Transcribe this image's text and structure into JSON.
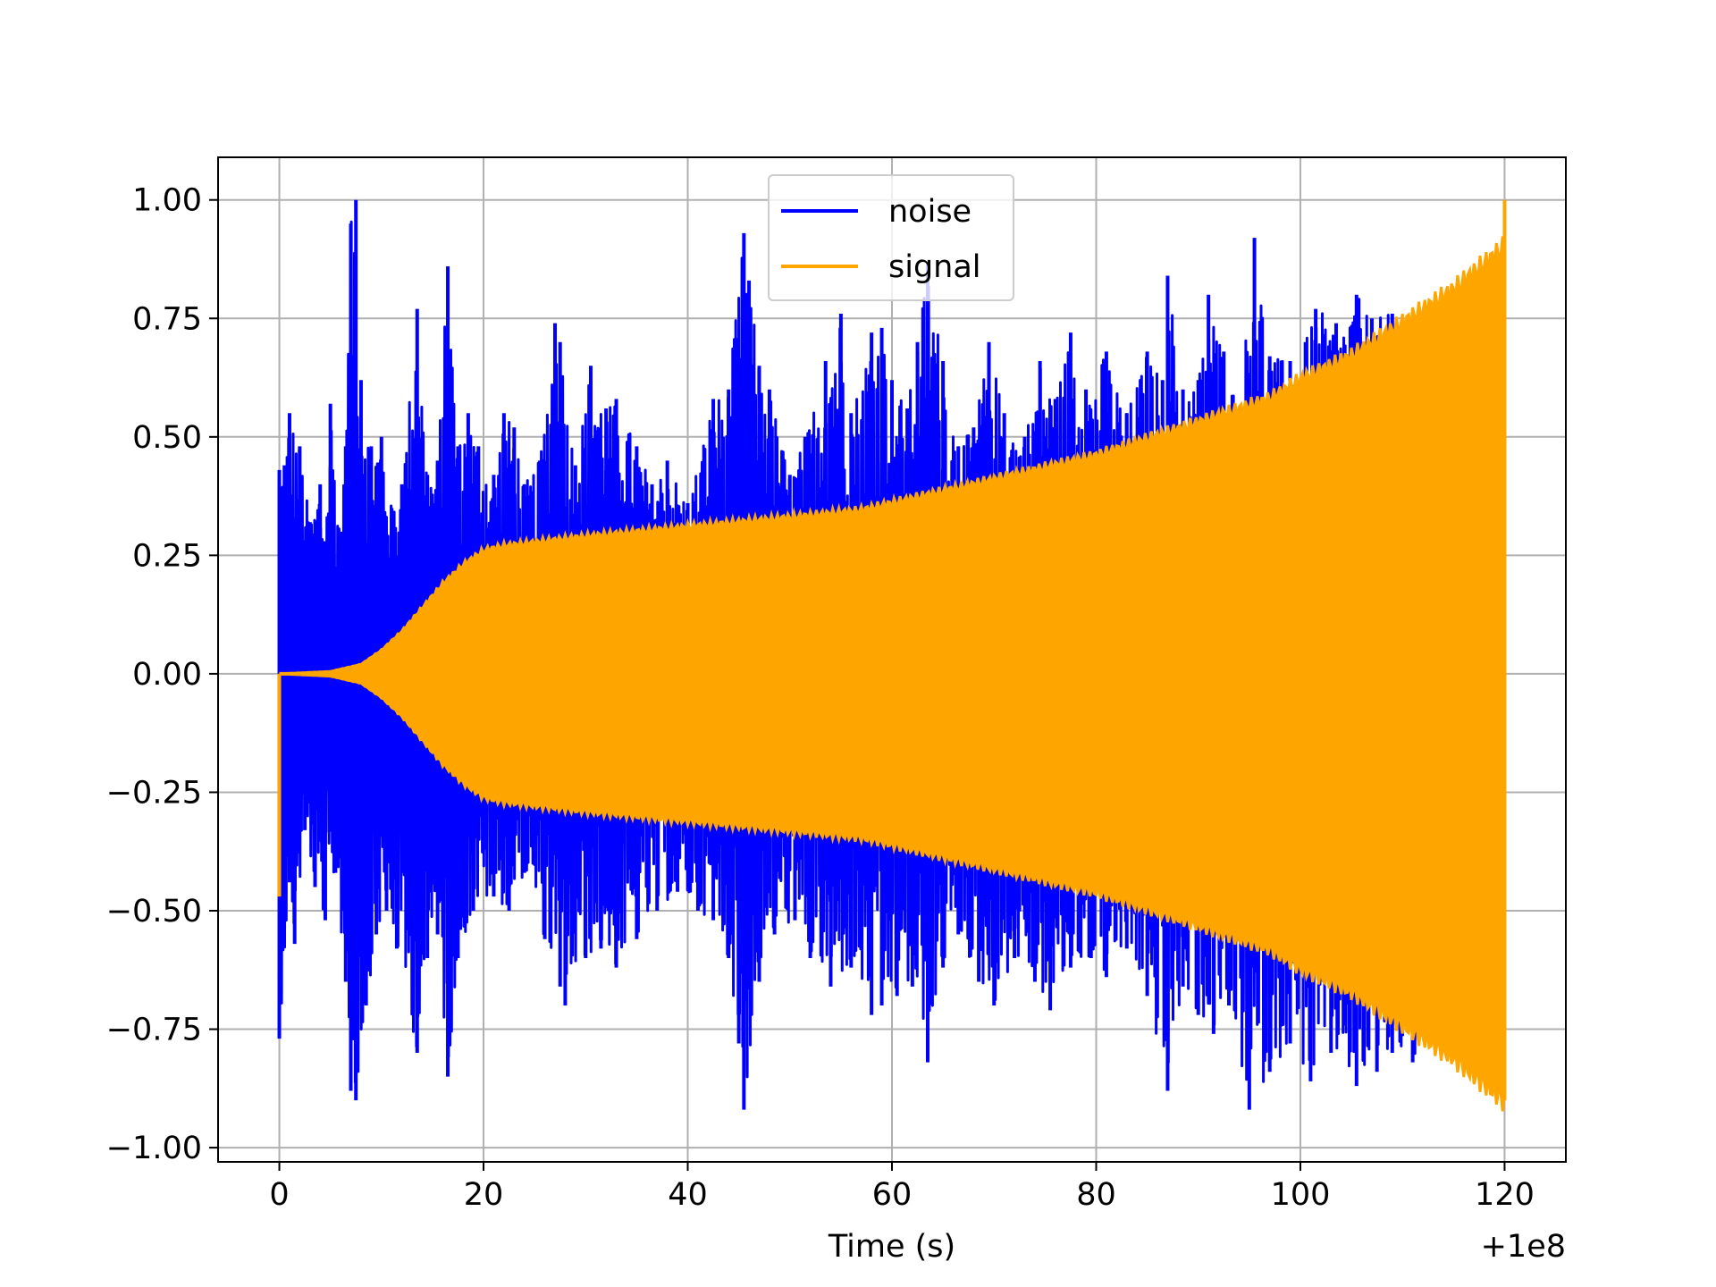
{
  "chart_data": {
    "type": "line",
    "xlabel": "Time (s)",
    "ylabel": "",
    "x_offset_label": "+1e8",
    "xlim": [
      -6,
      126
    ],
    "ylim": [
      -1.03,
      1.09
    ],
    "grid": true,
    "legend_position": "upper center",
    "x_ticks": [
      0,
      20,
      40,
      60,
      80,
      100,
      120
    ],
    "x_tick_labels": [
      "0",
      "20",
      "40",
      "60",
      "80",
      "100",
      "120"
    ],
    "y_ticks": [
      1.0,
      0.75,
      0.5,
      0.25,
      0.0,
      -0.25,
      -0.5,
      -0.75,
      -1.0
    ],
    "y_tick_labels": [
      "1.00",
      "0.75",
      "0.50",
      "0.25",
      "0.00",
      "−0.25",
      "−0.50",
      "−0.75",
      "−1.00"
    ],
    "x_range": [
      0,
      120
    ],
    "series": [
      {
        "name": "noise",
        "color": "#0000ff",
        "peaks": [
          {
            "x": 0.0,
            "v": 0.43
          },
          {
            "x": 0.5,
            "v": 0.44
          },
          {
            "x": 1.0,
            "v": 0.55
          },
          {
            "x": 2.0,
            "v": 0.48
          },
          {
            "x": 3.0,
            "v": 0.32
          },
          {
            "x": 4.0,
            "v": 0.4
          },
          {
            "x": 4.5,
            "v": 0.28
          },
          {
            "x": 5.0,
            "v": 0.57
          },
          {
            "x": 6.0,
            "v": 0.3
          },
          {
            "x": 6.5,
            "v": 0.48
          },
          {
            "x": 7.0,
            "v": 0.95
          },
          {
            "x": 7.5,
            "v": 1.0
          },
          {
            "x": 8.0,
            "v": 0.62
          },
          {
            "x": 9.0,
            "v": 0.48
          },
          {
            "x": 10.0,
            "v": 0.5
          },
          {
            "x": 11.0,
            "v": 0.35
          },
          {
            "x": 12.0,
            "v": 0.4
          },
          {
            "x": 13.5,
            "v": 0.77
          },
          {
            "x": 14.5,
            "v": 0.42
          },
          {
            "x": 15.5,
            "v": 0.45
          },
          {
            "x": 16.5,
            "v": 0.86
          },
          {
            "x": 17.5,
            "v": 0.48
          },
          {
            "x": 18.5,
            "v": 0.55
          },
          {
            "x": 19.5,
            "v": 0.48
          },
          {
            "x": 21.0,
            "v": 0.42
          },
          {
            "x": 22.0,
            "v": 0.55
          },
          {
            "x": 23.0,
            "v": 0.52
          },
          {
            "x": 24.0,
            "v": 0.4
          },
          {
            "x": 25.5,
            "v": 0.45
          },
          {
            "x": 27.0,
            "v": 0.74
          },
          {
            "x": 27.5,
            "v": 0.7
          },
          {
            "x": 29.0,
            "v": 0.44
          },
          {
            "x": 30.5,
            "v": 0.65
          },
          {
            "x": 32.0,
            "v": 0.56
          },
          {
            "x": 33.0,
            "v": 0.58
          },
          {
            "x": 35.0,
            "v": 0.48
          },
          {
            "x": 36.5,
            "v": 0.4
          },
          {
            "x": 38.0,
            "v": 0.45
          },
          {
            "x": 40.0,
            "v": 0.36
          },
          {
            "x": 42.5,
            "v": 0.58
          },
          {
            "x": 44.0,
            "v": 0.6
          },
          {
            "x": 45.5,
            "v": 0.93
          },
          {
            "x": 46.0,
            "v": 0.83
          },
          {
            "x": 47.0,
            "v": 0.65
          },
          {
            "x": 48.0,
            "v": 0.6
          },
          {
            "x": 50.0,
            "v": 0.42
          },
          {
            "x": 51.5,
            "v": 0.5
          },
          {
            "x": 53.5,
            "v": 0.66
          },
          {
            "x": 55.0,
            "v": 0.76
          },
          {
            "x": 56.0,
            "v": 0.55
          },
          {
            "x": 58.0,
            "v": 0.72
          },
          {
            "x": 59.0,
            "v": 0.73
          },
          {
            "x": 60.0,
            "v": 0.62
          },
          {
            "x": 61.5,
            "v": 0.56
          },
          {
            "x": 62.5,
            "v": 0.7
          },
          {
            "x": 63.5,
            "v": 0.87
          },
          {
            "x": 65.0,
            "v": 0.66
          },
          {
            "x": 66.5,
            "v": 0.48
          },
          {
            "x": 68.0,
            "v": 0.52
          },
          {
            "x": 69.5,
            "v": 0.7
          },
          {
            "x": 71.0,
            "v": 0.55
          },
          {
            "x": 73.0,
            "v": 0.5
          },
          {
            "x": 74.5,
            "v": 0.66
          },
          {
            "x": 76.0,
            "v": 0.58
          },
          {
            "x": 77.5,
            "v": 0.72
          },
          {
            "x": 79.0,
            "v": 0.6
          },
          {
            "x": 81.0,
            "v": 0.68
          },
          {
            "x": 83.0,
            "v": 0.55
          },
          {
            "x": 85.0,
            "v": 0.68
          },
          {
            "x": 86.5,
            "v": 0.62
          },
          {
            "x": 87.0,
            "v": 0.84
          },
          {
            "x": 88.5,
            "v": 0.6
          },
          {
            "x": 90.0,
            "v": 0.62
          },
          {
            "x": 91.0,
            "v": 0.8
          },
          {
            "x": 92.5,
            "v": 0.68
          },
          {
            "x": 94.0,
            "v": 0.56
          },
          {
            "x": 95.5,
            "v": 0.92
          },
          {
            "x": 97.0,
            "v": 0.67
          },
          {
            "x": 99.0,
            "v": 0.66
          },
          {
            "x": 100.5,
            "v": 0.7
          },
          {
            "x": 101.5,
            "v": 0.77
          },
          {
            "x": 103.5,
            "v": 0.74
          },
          {
            "x": 105.5,
            "v": 0.8
          },
          {
            "x": 107.0,
            "v": 0.75
          },
          {
            "x": 109.0,
            "v": 0.76
          },
          {
            "x": 110.5,
            "v": 0.75
          },
          {
            "x": 113.0,
            "v": 0.78
          }
        ],
        "troughs": [
          {
            "x": 0.0,
            "v": -0.77
          },
          {
            "x": 1.0,
            "v": -0.44
          },
          {
            "x": 1.5,
            "v": -0.57
          },
          {
            "x": 2.5,
            "v": -0.33
          },
          {
            "x": 3.5,
            "v": -0.45
          },
          {
            "x": 4.5,
            "v": -0.52
          },
          {
            "x": 5.5,
            "v": -0.42
          },
          {
            "x": 6.5,
            "v": -0.65
          },
          {
            "x": 7.0,
            "v": -0.88
          },
          {
            "x": 7.5,
            "v": -0.9
          },
          {
            "x": 8.5,
            "v": -0.7
          },
          {
            "x": 9.5,
            "v": -0.55
          },
          {
            "x": 10.5,
            "v": -0.5
          },
          {
            "x": 11.5,
            "v": -0.58
          },
          {
            "x": 13.5,
            "v": -0.8
          },
          {
            "x": 14.5,
            "v": -0.6
          },
          {
            "x": 15.5,
            "v": -0.55
          },
          {
            "x": 16.5,
            "v": -0.85
          },
          {
            "x": 17.5,
            "v": -0.6
          },
          {
            "x": 19.0,
            "v": -0.5
          },
          {
            "x": 21.0,
            "v": -0.47
          },
          {
            "x": 22.5,
            "v": -0.5
          },
          {
            "x": 24.0,
            "v": -0.42
          },
          {
            "x": 26.0,
            "v": -0.56
          },
          {
            "x": 27.5,
            "v": -0.66
          },
          {
            "x": 28.0,
            "v": -0.7
          },
          {
            "x": 30.0,
            "v": -0.6
          },
          {
            "x": 31.5,
            "v": -0.58
          },
          {
            "x": 33.0,
            "v": -0.62
          },
          {
            "x": 35.0,
            "v": -0.56
          },
          {
            "x": 37.0,
            "v": -0.5
          },
          {
            "x": 39.0,
            "v": -0.46
          },
          {
            "x": 41.0,
            "v": -0.5
          },
          {
            "x": 42.5,
            "v": -0.52
          },
          {
            "x": 44.0,
            "v": -0.6
          },
          {
            "x": 45.0,
            "v": -0.78
          },
          {
            "x": 45.5,
            "v": -0.92
          },
          {
            "x": 47.0,
            "v": -0.65
          },
          {
            "x": 48.5,
            "v": -0.55
          },
          {
            "x": 50.5,
            "v": -0.52
          },
          {
            "x": 52.0,
            "v": -0.6
          },
          {
            "x": 54.0,
            "v": -0.66
          },
          {
            "x": 56.0,
            "v": -0.62
          },
          {
            "x": 58.0,
            "v": -0.72
          },
          {
            "x": 59.0,
            "v": -0.7
          },
          {
            "x": 60.5,
            "v": -0.68
          },
          {
            "x": 62.0,
            "v": -0.66
          },
          {
            "x": 63.5,
            "v": -0.82
          },
          {
            "x": 65.0,
            "v": -0.62
          },
          {
            "x": 66.5,
            "v": -0.55
          },
          {
            "x": 68.5,
            "v": -0.65
          },
          {
            "x": 70.0,
            "v": -0.7
          },
          {
            "x": 72.0,
            "v": -0.6
          },
          {
            "x": 74.0,
            "v": -0.65
          },
          {
            "x": 75.5,
            "v": -0.71
          },
          {
            "x": 77.5,
            "v": -0.62
          },
          {
            "x": 79.5,
            "v": -0.6
          },
          {
            "x": 81.0,
            "v": -0.64
          },
          {
            "x": 83.0,
            "v": -0.58
          },
          {
            "x": 85.0,
            "v": -0.68
          },
          {
            "x": 87.0,
            "v": -0.88
          },
          {
            "x": 88.5,
            "v": -0.66
          },
          {
            "x": 90.0,
            "v": -0.72
          },
          {
            "x": 91.5,
            "v": -0.76
          },
          {
            "x": 93.0,
            "v": -0.7
          },
          {
            "x": 95.0,
            "v": -0.92
          },
          {
            "x": 97.0,
            "v": -0.84
          },
          {
            "x": 99.0,
            "v": -0.78
          },
          {
            "x": 101.0,
            "v": -0.86
          },
          {
            "x": 103.0,
            "v": -0.8
          },
          {
            "x": 105.5,
            "v": -0.87
          },
          {
            "x": 107.5,
            "v": -0.84
          },
          {
            "x": 109.0,
            "v": -0.8
          },
          {
            "x": 111.0,
            "v": -0.82
          }
        ]
      },
      {
        "name": "signal",
        "color": "#ffa500",
        "envelope": [
          {
            "x": 0,
            "v": 0.0
          },
          {
            "x": 5,
            "v": 0.005
          },
          {
            "x": 8,
            "v": 0.02
          },
          {
            "x": 10,
            "v": 0.05
          },
          {
            "x": 12,
            "v": 0.09
          },
          {
            "x": 14,
            "v": 0.14
          },
          {
            "x": 16,
            "v": 0.19
          },
          {
            "x": 18,
            "v": 0.23
          },
          {
            "x": 20,
            "v": 0.26
          },
          {
            "x": 22,
            "v": 0.27
          },
          {
            "x": 30,
            "v": 0.29
          },
          {
            "x": 40,
            "v": 0.31
          },
          {
            "x": 50,
            "v": 0.33
          },
          {
            "x": 57,
            "v": 0.345
          },
          {
            "x": 60,
            "v": 0.36
          },
          {
            "x": 70,
            "v": 0.41
          },
          {
            "x": 80,
            "v": 0.46
          },
          {
            "x": 90,
            "v": 0.53
          },
          {
            "x": 97,
            "v": 0.58
          },
          {
            "x": 100,
            "v": 0.62
          },
          {
            "x": 105,
            "v": 0.67
          },
          {
            "x": 110,
            "v": 0.74
          },
          {
            "x": 115,
            "v": 0.81
          },
          {
            "x": 120,
            "v": 0.9
          }
        ],
        "start_spike_min": -0.47,
        "end_spike_max": 1.0
      }
    ]
  }
}
